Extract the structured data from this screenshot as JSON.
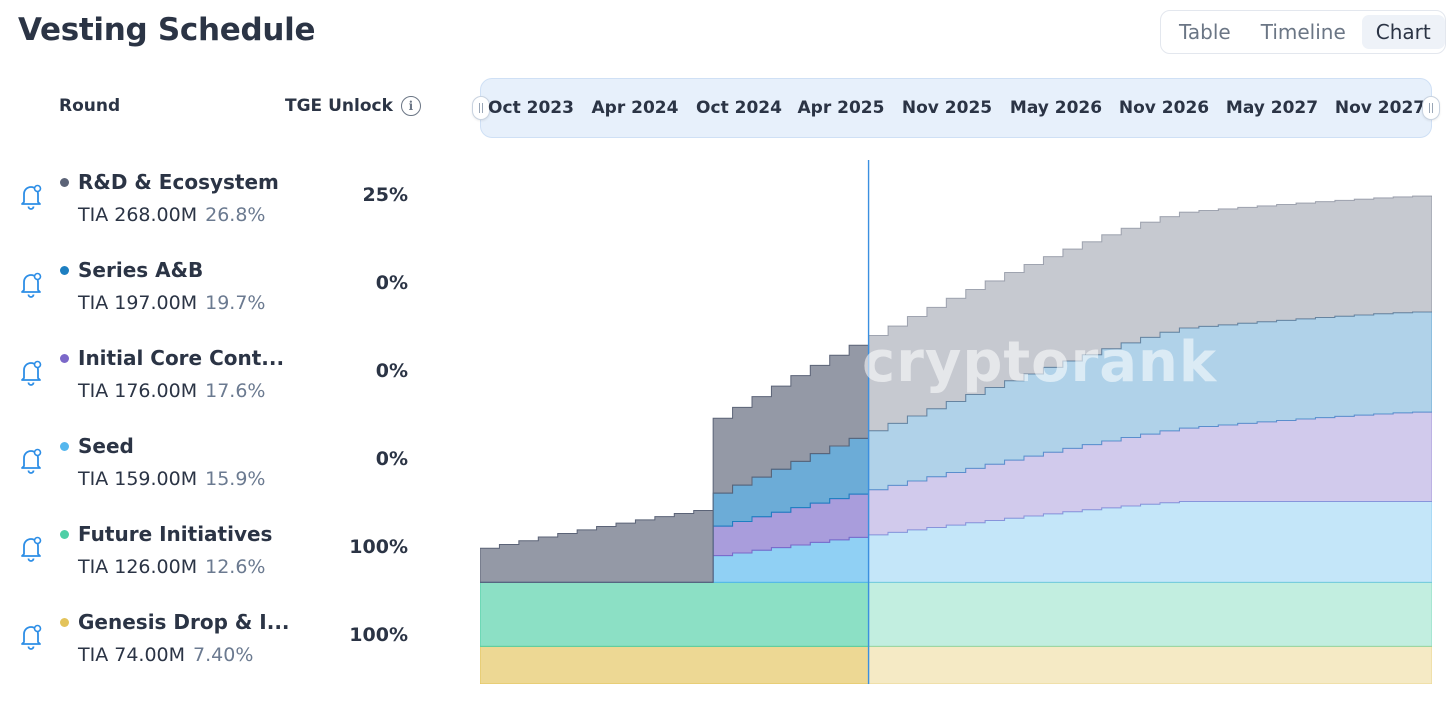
{
  "header": {
    "title": "Vesting Schedule"
  },
  "view_toggle": {
    "options": [
      "Table",
      "Timeline",
      "Chart"
    ],
    "active": "Chart"
  },
  "columns": {
    "round": "Round",
    "tge_unlock": "TGE Unlock",
    "info_icon": "info-icon"
  },
  "rounds": [
    {
      "name": "R&D & Ecosystem",
      "amount": "TIA 268.00M",
      "percent": "26.8%",
      "tge": "25%",
      "color": "#5b6377"
    },
    {
      "name": "Series A&B",
      "amount": "TIA 197.00M",
      "percent": "19.7%",
      "tge": "0%",
      "color": "#1d7fc1"
    },
    {
      "name": "Initial Core Cont...",
      "amount": "TIA 176.00M",
      "percent": "17.6%",
      "tge": "0%",
      "color": "#7b68c9"
    },
    {
      "name": "Seed",
      "amount": "TIA 159.00M",
      "percent": "15.9%",
      "tge": "0%",
      "color": "#55b7ee"
    },
    {
      "name": "Future Initiatives",
      "amount": "TIA 126.00M",
      "percent": "12.6%",
      "tge": "100%",
      "color": "#4fcfa6"
    },
    {
      "name": "Genesis Drop & I...",
      "amount": "TIA 74.00M",
      "percent": "7.40%",
      "tge": "100%",
      "color": "#e3c35a"
    }
  ],
  "timeline": {
    "labels": [
      "Oct 2023",
      "Apr 2024",
      "Oct 2024",
      "Apr 2025",
      "Nov 2025",
      "May 2026",
      "Nov 2026",
      "May 2027",
      "Nov 2027"
    ]
  },
  "watermark": "cryptorank",
  "chart_data": {
    "type": "area",
    "stacked": true,
    "x_start": "2023-10",
    "x_end": "2027-11",
    "today_marker": "2025-06",
    "cliff_month_index": 12,
    "total_months": 49,
    "series": [
      {
        "name": "Genesis Drop & I...",
        "color": "#e3c35a",
        "total": 74.0,
        "tge_fraction": 1.0,
        "vesting_months": 0
      },
      {
        "name": "Future Initiatives",
        "color": "#4fcfa6",
        "total": 126.0,
        "tge_fraction": 1.0,
        "vesting_months": 0
      },
      {
        "name": "Seed",
        "color": "#55b7ee",
        "total": 159.0,
        "cliff_fraction": 0.33,
        "vesting_months": 24
      },
      {
        "name": "Initial Core Cont...",
        "color": "#7b68c9",
        "total": 176.0,
        "cliff_fraction": 0.33,
        "vesting_months": 36
      },
      {
        "name": "Series A&B",
        "color": "#1d7fc1",
        "total": 197.0,
        "cliff_fraction": 0.33,
        "vesting_months": 24
      },
      {
        "name": "R&D & Ecosystem",
        "color": "#5b6377",
        "total": 268.0,
        "tge_fraction": 0.25,
        "vesting_months": 36,
        "final_unlocked": 228.0
      }
    ]
  }
}
